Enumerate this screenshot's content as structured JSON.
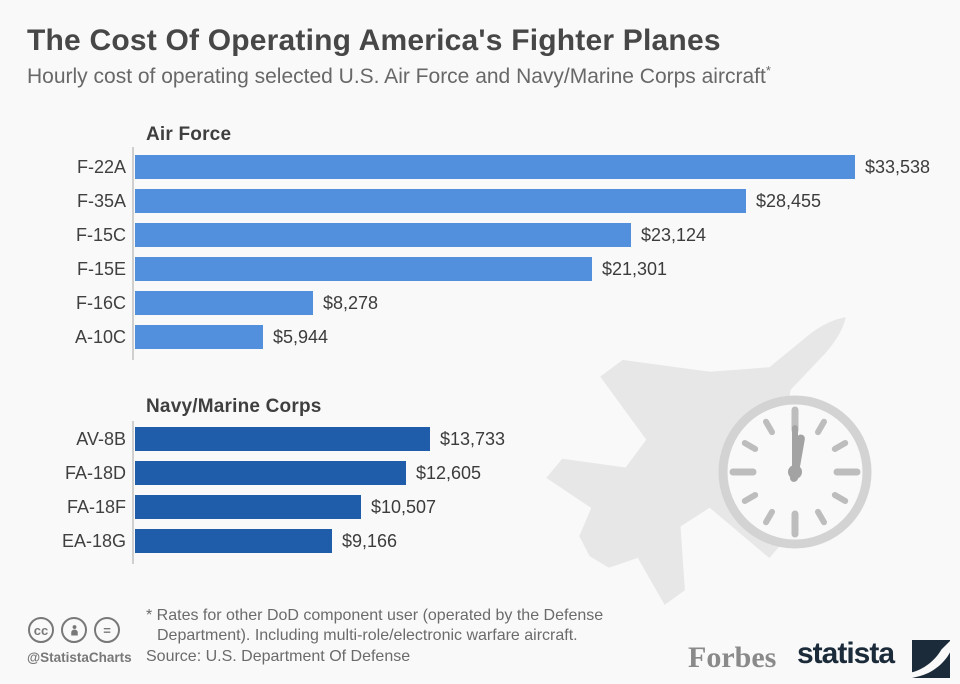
{
  "header": {
    "title": "The Cost Of Operating America's Fighter Planes",
    "subtitle": "Hourly cost of operating selected U.S. Air Force and Navy/Marine Corps aircraft",
    "subtitle_note_mark": "*"
  },
  "chart_data": {
    "type": "bar",
    "orientation": "horizontal",
    "value_unit": "US dollars per flight hour",
    "xlim": [
      0,
      33538
    ],
    "grid": false,
    "legend": false,
    "series": [
      {
        "name": "Air Force",
        "color": "#5290dd",
        "categories": [
          "F-22A",
          "F-35A",
          "F-15C",
          "F-15E",
          "F-16C",
          "A-10C"
        ],
        "values": [
          33538,
          28455,
          23124,
          21301,
          8278,
          5944
        ],
        "value_labels": [
          "$33,538",
          "$28,455",
          "$23,124",
          "$21,301",
          "$8,278",
          "$5,944"
        ]
      },
      {
        "name": "Navy/Marine Corps",
        "color": "#1f5dab",
        "categories": [
          "AV-8B",
          "FA-18D",
          "FA-18F",
          "EA-18G"
        ],
        "values": [
          13733,
          12605,
          10507,
          9166
        ],
        "value_labels": [
          "$13,733",
          "$12,605",
          "$10,507",
          "$9,166"
        ]
      }
    ]
  },
  "footer": {
    "footnote_line1": "* Rates for other DoD component user (operated by the Defense",
    "footnote_line2": "Department). Including multi-role/electronic warfare aircraft.",
    "source": "Source: U.S. Department Of Defense",
    "credit_handle": "@StatistaCharts",
    "cc_glyph": "cc",
    "nd_glyph": "=",
    "partner_logo": "Forbes",
    "brand_logo": "statista"
  },
  "colors": {
    "background": "#f9f9f9",
    "air_force_bar": "#5290dd",
    "navy_bar": "#1f5dab",
    "watermark_plane": "#e7e7e7",
    "watermark_clock": "#d3d3d3",
    "text_dark": "#404040",
    "text_muted": "#6b6b6b",
    "brand_navy": "#1b2b3a"
  }
}
